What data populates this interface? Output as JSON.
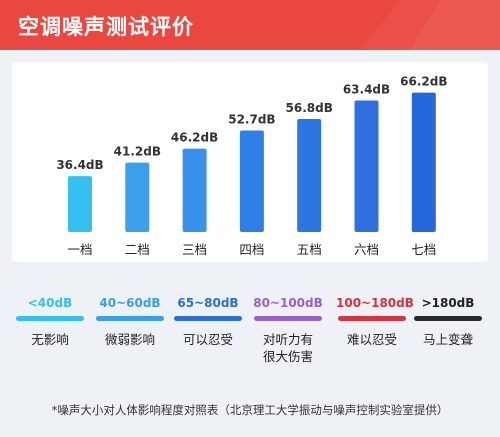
{
  "header": {
    "title": "空调噪声测试评价"
  },
  "chart_data": {
    "type": "bar",
    "categories": [
      "一档",
      "二档",
      "三档",
      "四档",
      "五档",
      "六档",
      "七档"
    ],
    "values": [
      36.4,
      41.2,
      46.2,
      52.7,
      56.8,
      63.4,
      66.2
    ],
    "value_labels": [
      "36.4dB",
      "41.2dB",
      "46.2dB",
      "52.7dB",
      "56.8dB",
      "63.4dB",
      "66.2dB"
    ],
    "unit": "dB",
    "colors": [
      "#35c1ef",
      "#3aa0ec",
      "#3891ea",
      "#2f80e6",
      "#2b74e2",
      "#2f6fe0",
      "#2667de"
    ],
    "ylim": [
      0,
      70
    ],
    "grid": false,
    "title": "",
    "xlabel": "",
    "ylabel": ""
  },
  "legend": [
    {
      "range": "<40dB",
      "color": "#35c1ef",
      "desc": [
        "无影响"
      ]
    },
    {
      "range": "40~60dB",
      "color": "#3a9ee8",
      "desc": [
        "微弱影响"
      ]
    },
    {
      "range": "65~80dB",
      "color": "#2c6fd6",
      "desc": [
        "可以忍受"
      ]
    },
    {
      "range": "80~100dB",
      "color": "#9b5fc9",
      "desc": [
        "对听力有",
        "很大伤害"
      ]
    },
    {
      "range": "100~180dB",
      "color": "#d6323f",
      "desc": [
        "难以忍受"
      ]
    },
    {
      "range": ">180dB",
      "color": "#2a2a2a",
      "desc": [
        "马上变聋"
      ]
    }
  ],
  "footnote": "*噪声大小对人体影响程度对照表（北京理工大学振动与噪声控制实验室提供）"
}
